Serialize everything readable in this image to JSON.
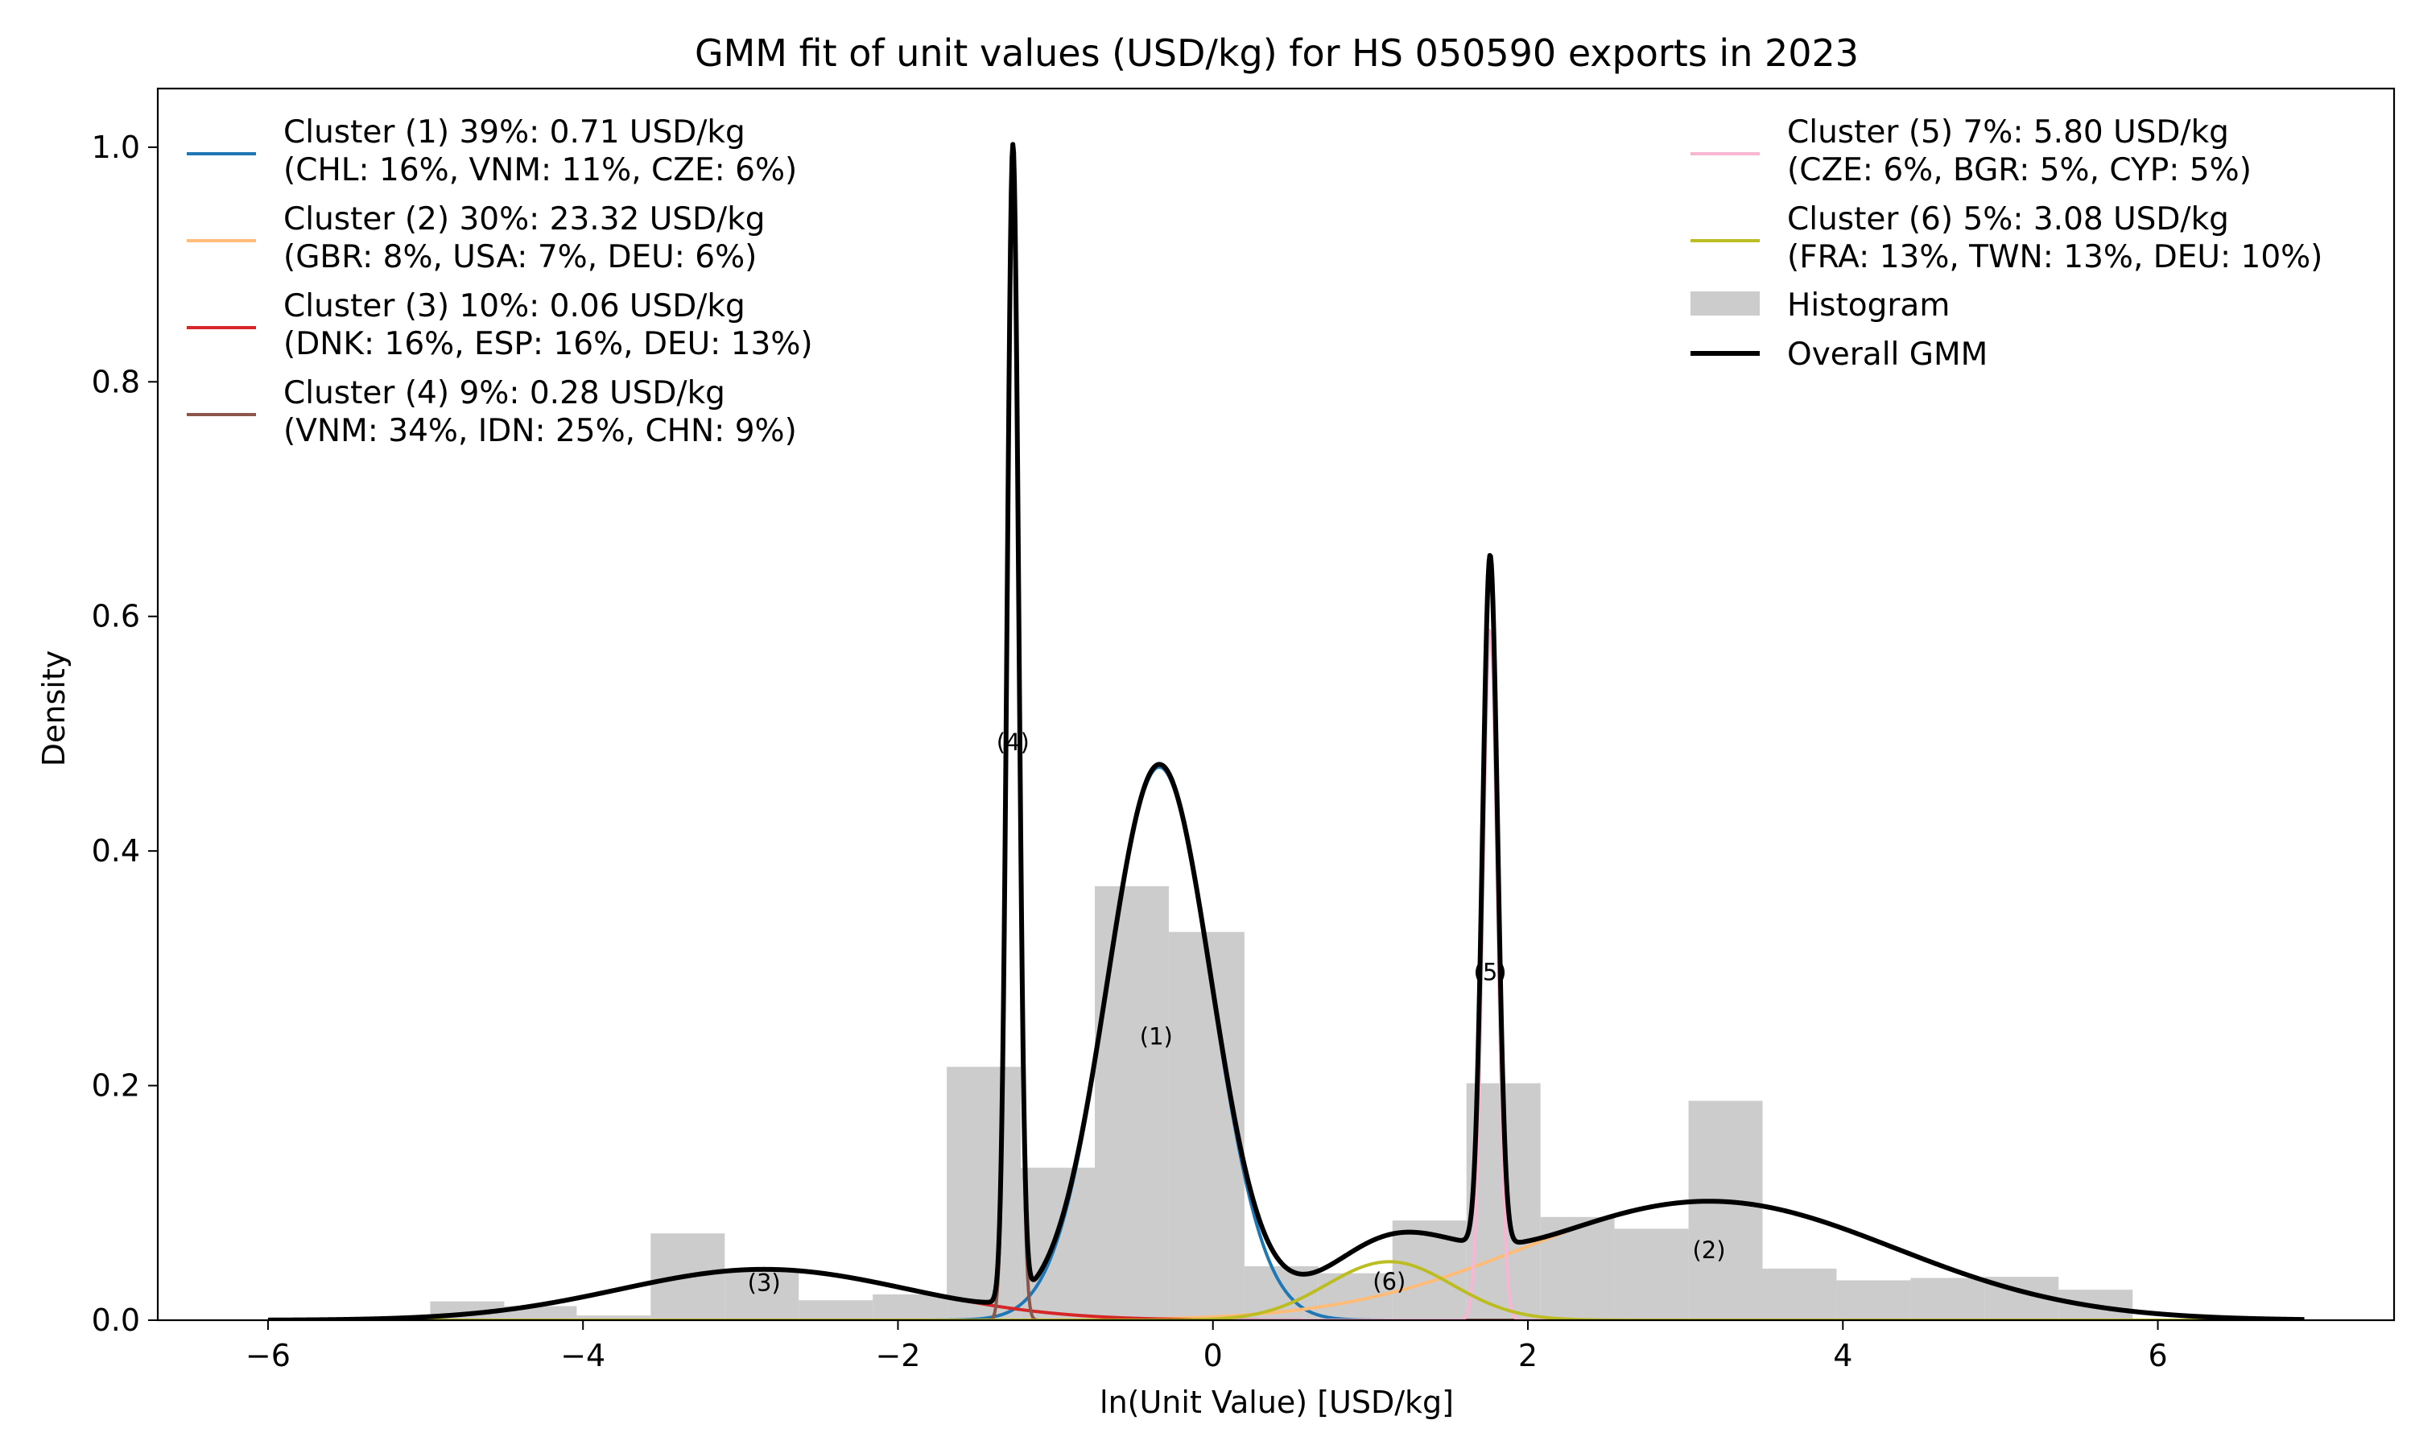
{
  "chart_data": {
    "type": "area",
    "title": "GMM fit of unit values (USD/kg) for HS 050590 exports in 2023",
    "xlabel": "ln(Unit Value) [USD/kg]",
    "ylabel": "Density",
    "xlim": [
      -6.7,
      7.5
    ],
    "ylim": [
      0,
      1.05
    ],
    "xticks": [
      -6,
      -4,
      -2,
      0,
      2,
      4,
      6
    ],
    "xtick_labels": [
      "−6",
      "−4",
      "−2",
      "0",
      "2",
      "4",
      "6"
    ],
    "yticks": [
      0,
      0.2,
      0.4,
      0.6,
      0.8,
      1.0
    ],
    "ytick_labels": [
      "0.0",
      "0.2",
      "0.4",
      "0.6",
      "0.8",
      "1.0"
    ],
    "grid": false,
    "histogram": {
      "name": "Histogram",
      "color": "#cccccc",
      "bins": [
        {
          "x0": -4.97,
          "x1": -4.5,
          "y": 0.016
        },
        {
          "x0": -4.5,
          "x1": -4.04,
          "y": 0.012
        },
        {
          "x0": -4.04,
          "x1": -3.57,
          "y": 0.004
        },
        {
          "x0": -3.57,
          "x1": -3.1,
          "y": 0.074
        },
        {
          "x0": -3.1,
          "x1": -2.63,
          "y": 0.044
        },
        {
          "x0": -2.63,
          "x1": -2.16,
          "y": 0.017
        },
        {
          "x0": -2.16,
          "x1": -1.69,
          "y": 0.022
        },
        {
          "x0": -1.69,
          "x1": -1.22,
          "y": 0.216
        },
        {
          "x0": -1.22,
          "x1": -0.75,
          "y": 0.13
        },
        {
          "x0": -0.75,
          "x1": -0.28,
          "y": 0.37
        },
        {
          "x0": -0.28,
          "x1": 0.2,
          "y": 0.331
        },
        {
          "x0": 0.2,
          "x1": 0.67,
          "y": 0.046
        },
        {
          "x0": 0.67,
          "x1": 1.14,
          "y": 0.04
        },
        {
          "x0": 1.14,
          "x1": 1.61,
          "y": 0.085
        },
        {
          "x0": 1.61,
          "x1": 2.08,
          "y": 0.202
        },
        {
          "x0": 2.08,
          "x1": 2.55,
          "y": 0.088
        },
        {
          "x0": 2.55,
          "x1": 3.02,
          "y": 0.078
        },
        {
          "x0": 3.02,
          "x1": 3.49,
          "y": 0.187
        },
        {
          "x0": 3.49,
          "x1": 3.96,
          "y": 0.044
        },
        {
          "x0": 3.96,
          "x1": 4.43,
          "y": 0.034
        },
        {
          "x0": 4.43,
          "x1": 4.9,
          "y": 0.036
        },
        {
          "x0": 4.9,
          "x1": 5.37,
          "y": 0.037
        },
        {
          "x0": 5.37,
          "x1": 5.84,
          "y": 0.026
        }
      ]
    },
    "x_range_curves": [
      -6,
      6.93
    ],
    "components": [
      {
        "id": "1",
        "weight": 0.39,
        "mean": -0.34,
        "sd": 0.33,
        "color": "#1f77b4",
        "label_x": -0.36,
        "label_y": 0.235
      },
      {
        "id": "2",
        "weight": 0.3,
        "mean": 3.15,
        "sd": 1.18,
        "color": "#ffbb78",
        "label_x": 3.15,
        "label_y": 0.053
      },
      {
        "id": "3",
        "weight": 0.1,
        "mean": -2.85,
        "sd": 0.92,
        "color": "#d62728",
        "label_x": -2.85,
        "label_y": 0.025
      },
      {
        "id": "4",
        "weight": 0.09,
        "mean": -1.27,
        "sd": 0.0365,
        "color": "#8c564b",
        "label_x": -1.27,
        "label_y": 0.486
      },
      {
        "id": "5",
        "weight": 0.07,
        "mean": 1.76,
        "sd": 0.0475,
        "color": "#f7b6d2",
        "label_x": 1.76,
        "label_y": 0.29
      },
      {
        "id": "6",
        "weight": 0.05,
        "mean": 1.12,
        "sd": 0.4,
        "color": "#bcbd22",
        "label_x": 1.12,
        "label_y": 0.026
      }
    ],
    "overall": {
      "name": "Overall GMM",
      "color": "#000000"
    },
    "legend": {
      "placement": "top (two columns: upper-left and upper-right)",
      "left_entries": [
        {
          "color": "#1f77b4",
          "line1": "Cluster (1) 39%: 0.71 USD/kg",
          "line2": "(CHL: 16%, VNM: 11%, CZE: 6%)"
        },
        {
          "color": "#ffbb78",
          "line1": "Cluster (2) 30%: 23.32 USD/kg",
          "line2": "(GBR: 8%, USA: 7%, DEU: 6%)"
        },
        {
          "color": "#d62728",
          "line1": "Cluster (3) 10%: 0.06 USD/kg",
          "line2": "(DNK: 16%, ESP: 16%, DEU: 13%)"
        },
        {
          "color": "#8c564b",
          "line1": "Cluster (4) 9%: 0.28 USD/kg",
          "line2": "(VNM: 34%, IDN: 25%, CHN: 9%)"
        }
      ],
      "right_entries": [
        {
          "color": "#f7b6d2",
          "line1": "Cluster (5) 7%: 5.80 USD/kg",
          "line2": "(CZE: 6%, BGR: 5%, CYP: 5%)"
        },
        {
          "color": "#bcbd22",
          "line1": "Cluster (6) 5%: 3.08 USD/kg",
          "line2": "(FRA: 13%, TWN: 13%, DEU: 10%)"
        }
      ],
      "histogram_label": "Histogram",
      "overall_label": "Overall GMM"
    }
  }
}
